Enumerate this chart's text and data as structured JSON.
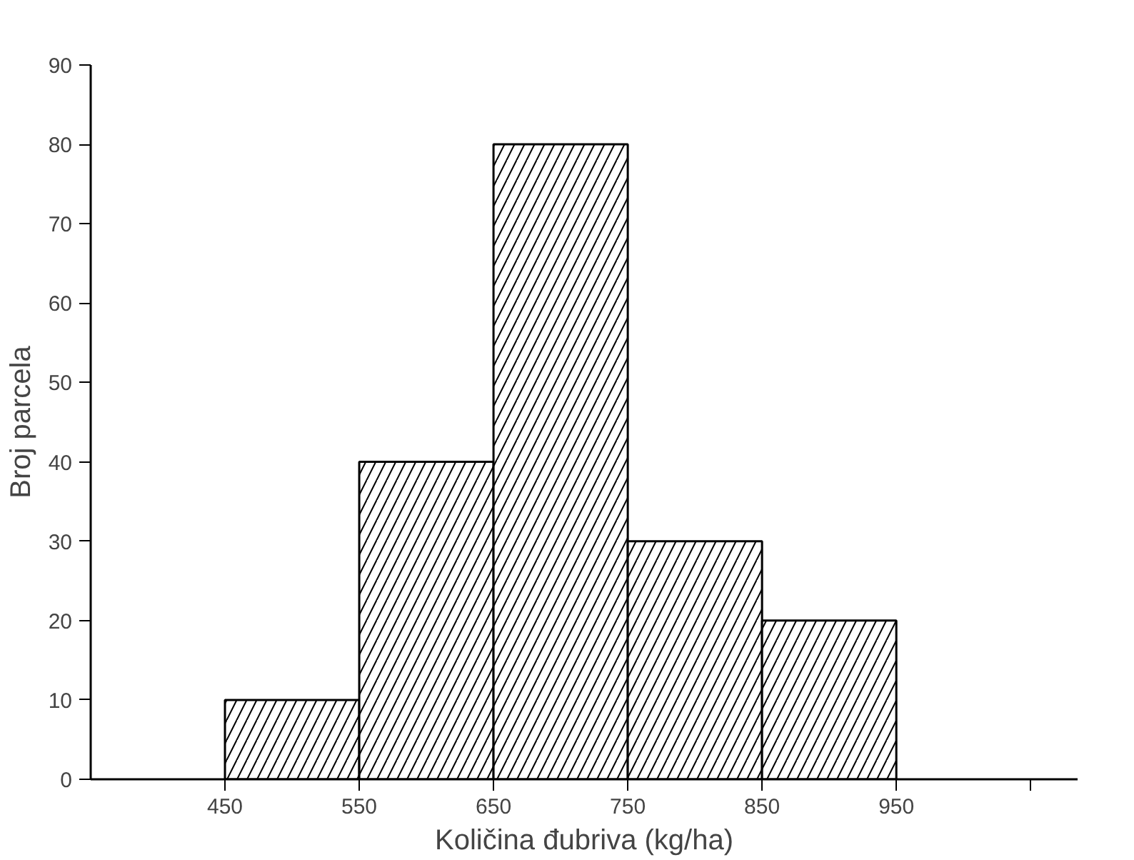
{
  "chart_data": {
    "type": "histogram",
    "xlabel": "Količina đubriva (kg/ha)",
    "ylabel": "Broj parcela",
    "bins": [
      450,
      550,
      650,
      750,
      850,
      950
    ],
    "values": [
      10,
      40,
      80,
      30,
      20
    ],
    "color": "#ffffff",
    "xlim": [
      350,
      1085
    ],
    "xticks": [
      450,
      550,
      650,
      750,
      850,
      950,
      {
        "value": 1050,
        "label": null
      }
    ],
    "ylim": [
      0,
      90
    ],
    "yticks": [
      0,
      10,
      20,
      30,
      40,
      50,
      60,
      70,
      80,
      90
    ],
    "grid": false
  }
}
